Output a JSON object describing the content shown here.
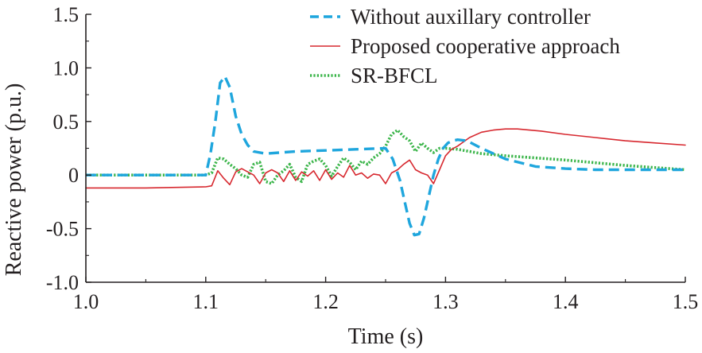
{
  "chart_data": {
    "type": "line",
    "title": "",
    "xlabel": "Time (s)",
    "ylabel": "Reactive power (p.u.)",
    "xlim": [
      1.0,
      1.5
    ],
    "ylim": [
      -1.0,
      1.5
    ],
    "x_ticks": [
      "1.0",
      "1.1",
      "1.2",
      "1.3",
      "1.4",
      "1.5"
    ],
    "y_ticks": [
      "-1.0",
      "-0.5",
      "0",
      "0.5",
      "1.0",
      "1.5"
    ],
    "grid": false,
    "legend_position": "top-right",
    "series": [
      {
        "name": "Without auxillary controller",
        "color": "#1fa6dd",
        "style": "dashed",
        "x": [
          1.0,
          1.05,
          1.1,
          1.104,
          1.108,
          1.112,
          1.116,
          1.12,
          1.125,
          1.13,
          1.135,
          1.14,
          1.15,
          1.175,
          1.2,
          1.225,
          1.25,
          1.256,
          1.262,
          1.266,
          1.27,
          1.274,
          1.278,
          1.282,
          1.286,
          1.29,
          1.294,
          1.298,
          1.302,
          1.306,
          1.31,
          1.318,
          1.33,
          1.35,
          1.375,
          1.4,
          1.425,
          1.45,
          1.475,
          1.5
        ],
        "y": [
          0.0,
          0.0,
          0.0,
          0.2,
          0.5,
          0.86,
          0.92,
          0.82,
          0.55,
          0.38,
          0.28,
          0.22,
          0.2,
          0.22,
          0.23,
          0.24,
          0.25,
          0.15,
          -0.05,
          -0.25,
          -0.45,
          -0.56,
          -0.55,
          -0.4,
          -0.2,
          0.0,
          0.15,
          0.25,
          0.3,
          0.32,
          0.33,
          0.32,
          0.25,
          0.15,
          0.08,
          0.06,
          0.05,
          0.05,
          0.05,
          0.05
        ]
      },
      {
        "name": "Proposed cooperative approach",
        "color": "#d7282f",
        "style": "solid",
        "x": [
          1.0,
          1.05,
          1.1,
          1.105,
          1.11,
          1.115,
          1.12,
          1.125,
          1.13,
          1.135,
          1.14,
          1.145,
          1.15,
          1.155,
          1.16,
          1.165,
          1.17,
          1.175,
          1.18,
          1.185,
          1.19,
          1.195,
          1.2,
          1.205,
          1.21,
          1.215,
          1.22,
          1.225,
          1.23,
          1.235,
          1.24,
          1.245,
          1.25,
          1.255,
          1.26,
          1.265,
          1.27,
          1.275,
          1.28,
          1.285,
          1.29,
          1.295,
          1.3,
          1.305,
          1.31,
          1.32,
          1.33,
          1.34,
          1.35,
          1.36,
          1.37,
          1.38,
          1.4,
          1.425,
          1.45,
          1.475,
          1.5
        ],
        "y": [
          -0.12,
          -0.12,
          -0.11,
          -0.1,
          0.04,
          -0.03,
          -0.09,
          0.03,
          0.06,
          0.03,
          0.0,
          -0.08,
          0.02,
          0.05,
          0.02,
          -0.06,
          0.04,
          -0.05,
          0.03,
          -0.01,
          0.04,
          -0.05,
          0.05,
          -0.04,
          0.02,
          -0.02,
          0.09,
          0.0,
          0.02,
          -0.03,
          0.01,
          0.0,
          -0.08,
          0.02,
          0.05,
          0.1,
          0.14,
          0.05,
          0.02,
          0.0,
          -0.08,
          0.05,
          0.18,
          0.24,
          0.27,
          0.35,
          0.4,
          0.42,
          0.43,
          0.43,
          0.42,
          0.41,
          0.38,
          0.35,
          0.32,
          0.3,
          0.28
        ]
      },
      {
        "name": "SR-BFCL",
        "color": "#3bb54a",
        "style": "dotted",
        "x": [
          1.0,
          1.05,
          1.1,
          1.105,
          1.11,
          1.115,
          1.12,
          1.125,
          1.13,
          1.135,
          1.14,
          1.145,
          1.15,
          1.155,
          1.16,
          1.165,
          1.17,
          1.175,
          1.18,
          1.185,
          1.19,
          1.195,
          1.2,
          1.205,
          1.21,
          1.215,
          1.22,
          1.225,
          1.23,
          1.235,
          1.24,
          1.245,
          1.25,
          1.255,
          1.26,
          1.265,
          1.27,
          1.275,
          1.28,
          1.285,
          1.29,
          1.295,
          1.3,
          1.31,
          1.33,
          1.35,
          1.4,
          1.45,
          1.5
        ],
        "y": [
          0.0,
          0.0,
          0.0,
          0.02,
          0.16,
          0.15,
          0.1,
          0.06,
          0.0,
          -0.02,
          0.1,
          0.12,
          -0.06,
          -0.08,
          0.0,
          0.04,
          0.1,
          -0.02,
          -0.06,
          0.1,
          0.13,
          0.15,
          0.09,
          -0.01,
          0.08,
          0.16,
          0.12,
          0.05,
          0.13,
          0.1,
          0.16,
          0.2,
          0.27,
          0.38,
          0.42,
          0.36,
          0.32,
          0.22,
          0.3,
          0.25,
          0.21,
          0.25,
          0.25,
          0.24,
          0.2,
          0.18,
          0.14,
          0.09,
          0.05
        ]
      }
    ]
  }
}
